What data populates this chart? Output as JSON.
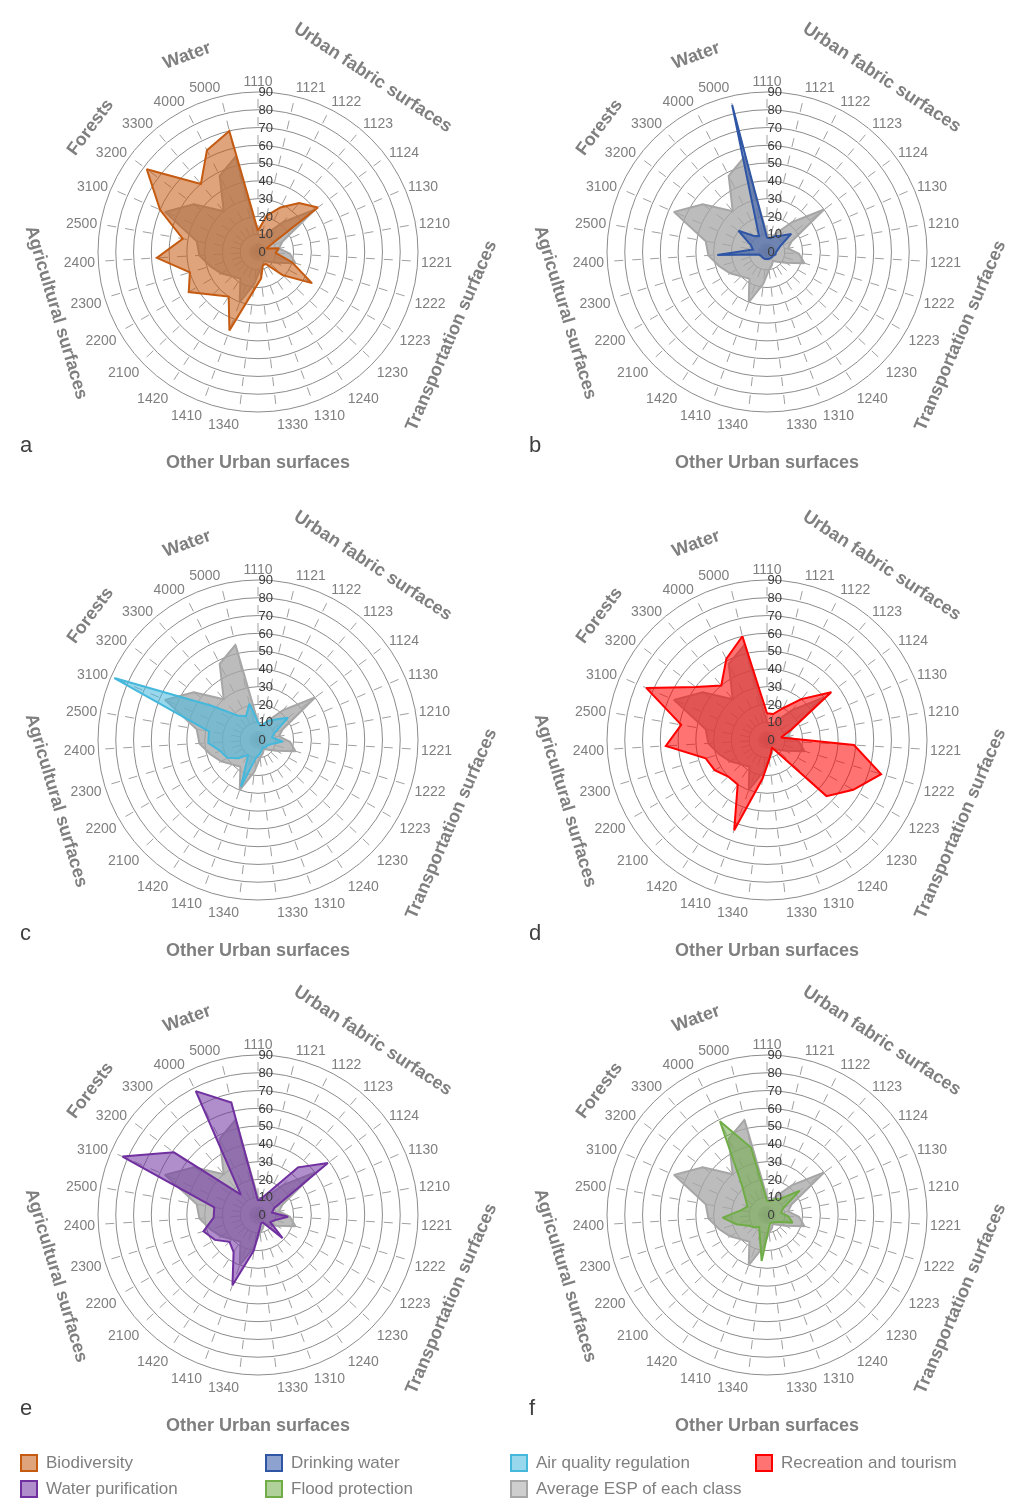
{
  "chart_data": [
    {
      "type": "radar",
      "title": "a",
      "categories": [
        "1110",
        "1121",
        "1122",
        "1123",
        "1124",
        "1130",
        "1210",
        "1221",
        "1222",
        "1223",
        "1230",
        "1240",
        "1310",
        "1330",
        "1340",
        "1410",
        "1420",
        "2100",
        "2200",
        "2300",
        "2400",
        "2500",
        "3100",
        "3200",
        "3300",
        "4000",
        "5000"
      ],
      "annotations": [
        "Urban fabric surfaces",
        "Transportation surfaces",
        "Other Urban surfaces",
        "Agricultural surfaces",
        "Forests",
        "Water"
      ],
      "ylim": [
        0,
        90
      ],
      "yticks": [
        0,
        10,
        20,
        30,
        40,
        50,
        60,
        70,
        80,
        90
      ],
      "grid": true,
      "legend": "bottom",
      "marker": "none",
      "line_style": "solid",
      "series": [
        {
          "name": "Average ESP of each class",
          "color": "#a6a6a6",
          "values": [
            10,
            8,
            12,
            22,
            40,
            15,
            12,
            18,
            22,
            12,
            8,
            6,
            8,
            10,
            18,
            30,
            18,
            20,
            24,
            28,
            33,
            35,
            57,
            45,
            30,
            48,
            55
          ]
        },
        {
          "name": "Biodiversity",
          "color": "#c55a11",
          "values": [
            12,
            21,
            28,
            36,
            42,
            5,
            12,
            10,
            20,
            35,
            19,
            8,
            8,
            15,
            22,
            47,
            30,
            35,
            45,
            40,
            57,
            43,
            60,
            78,
            50,
            64,
            70
          ]
        }
      ]
    },
    {
      "type": "radar",
      "title": "b",
      "categories": [
        "1110",
        "1121",
        "1122",
        "1123",
        "1124",
        "1130",
        "1210",
        "1221",
        "1222",
        "1223",
        "1230",
        "1240",
        "1310",
        "1330",
        "1340",
        "1410",
        "1420",
        "2100",
        "2200",
        "2300",
        "2400",
        "2500",
        "3100",
        "3200",
        "3300",
        "4000",
        "5000"
      ],
      "annotations": [
        "Urban fabric surfaces",
        "Transportation surfaces",
        "Other Urban surfaces",
        "Agricultural surfaces",
        "Forests",
        "Water"
      ],
      "ylim": [
        0,
        90
      ],
      "yticks": [
        0,
        10,
        20,
        30,
        40,
        50,
        60,
        70,
        80,
        90
      ],
      "grid": true,
      "legend": "bottom",
      "marker": "none",
      "line_style": "solid",
      "series": [
        {
          "name": "Average ESP of each class",
          "color": "#a6a6a6",
          "values": [
            10,
            8,
            12,
            22,
            40,
            15,
            12,
            18,
            22,
            12,
            8,
            6,
            8,
            10,
            18,
            30,
            18,
            20,
            24,
            28,
            33,
            35,
            57,
            45,
            30,
            48,
            55
          ]
        },
        {
          "name": "Drinking water",
          "color": "#2f55a5",
          "values": [
            8,
            8,
            10,
            12,
            17,
            8,
            6,
            5,
            5,
            4,
            4,
            4,
            4,
            4,
            4,
            4,
            4,
            4,
            4,
            5,
            28,
            8,
            10,
            20,
            12,
            10,
            85
          ]
        }
      ]
    },
    {
      "type": "radar",
      "title": "c",
      "categories": [
        "1110",
        "1121",
        "1122",
        "1123",
        "1124",
        "1130",
        "1210",
        "1221",
        "1222",
        "1223",
        "1230",
        "1240",
        "1310",
        "1330",
        "1340",
        "1410",
        "1420",
        "2100",
        "2200",
        "2300",
        "2400",
        "2500",
        "3100",
        "3200",
        "3300",
        "4000",
        "5000"
      ],
      "annotations": [
        "Urban fabric surfaces",
        "Transportation surfaces",
        "Other Urban surfaces",
        "Agricultural surfaces",
        "Forests",
        "Water"
      ],
      "ylim": [
        0,
        90
      ],
      "yticks": [
        0,
        10,
        20,
        30,
        40,
        50,
        60,
        70,
        80,
        90
      ],
      "grid": true,
      "legend": "bottom",
      "marker": "none",
      "line_style": "solid",
      "series": [
        {
          "name": "Average ESP of each class",
          "color": "#a6a6a6",
          "values": [
            10,
            8,
            12,
            22,
            40,
            15,
            12,
            18,
            22,
            12,
            8,
            6,
            8,
            10,
            18,
            30,
            18,
            20,
            24,
            28,
            33,
            35,
            57,
            45,
            30,
            48,
            55
          ]
        },
        {
          "name": "Air quality regulation",
          "color": "#45b8dc",
          "values": [
            10,
            8,
            12,
            15,
            21,
            10,
            8,
            14,
            8,
            6,
            6,
            5,
            6,
            8,
            10,
            28,
            10,
            15,
            20,
            22,
            28,
            28,
            88,
            32,
            18,
            15,
            21
          ]
        }
      ]
    },
    {
      "type": "radar",
      "title": "d",
      "categories": [
        "1110",
        "1121",
        "1122",
        "1123",
        "1124",
        "1130",
        "1210",
        "1221",
        "1222",
        "1223",
        "1230",
        "1240",
        "1310",
        "1330",
        "1340",
        "1410",
        "1420",
        "2100",
        "2200",
        "2300",
        "2400",
        "2500",
        "3100",
        "3200",
        "3300",
        "4000",
        "5000"
      ],
      "annotations": [
        "Urban fabric surfaces",
        "Transportation surfaces",
        "Other Urban surfaces",
        "Agricultural surfaces",
        "Forests",
        "Water"
      ],
      "ylim": [
        0,
        90
      ],
      "yticks": [
        0,
        10,
        20,
        30,
        40,
        50,
        60,
        70,
        80,
        90
      ],
      "grid": true,
      "legend": "bottom",
      "marker": "none",
      "line_style": "solid",
      "series": [
        {
          "name": "Average ESP of each class",
          "color": "#a6a6a6",
          "values": [
            10,
            8,
            12,
            22,
            40,
            15,
            12,
            18,
            22,
            12,
            8,
            6,
            8,
            10,
            18,
            30,
            18,
            20,
            24,
            28,
            33,
            35,
            57,
            45,
            30,
            48,
            55
          ]
        },
        {
          "name": "Recreation and tourism",
          "color": "#ff0000",
          "values": [
            15,
            15,
            20,
            30,
            45,
            15,
            8,
            49,
            67,
            56,
            46,
            5,
            7,
            11,
            22,
            54,
            30,
            30,
            34,
            36,
            57,
            49,
            74,
            50,
            40,
            51,
            60
          ]
        }
      ]
    },
    {
      "type": "radar",
      "title": "e",
      "categories": [
        "1110",
        "1121",
        "1122",
        "1123",
        "1124",
        "1130",
        "1210",
        "1221",
        "1222",
        "1223",
        "1230",
        "1240",
        "1310",
        "1330",
        "1340",
        "1410",
        "1420",
        "2100",
        "2200",
        "2300",
        "2400",
        "2500",
        "3100",
        "3200",
        "3300",
        "4000",
        "5000"
      ],
      "annotations": [
        "Urban fabric surfaces",
        "Transportation surfaces",
        "Other Urban surfaces",
        "Agricultural surfaces",
        "Forests",
        "Water"
      ],
      "ylim": [
        0,
        90
      ],
      "yticks": [
        0,
        10,
        20,
        30,
        40,
        50,
        60,
        70,
        80,
        90
      ],
      "grid": true,
      "legend": "bottom",
      "marker": "none",
      "line_style": "solid",
      "series": [
        {
          "name": "Average ESP of each class",
          "color": "#a6a6a6",
          "values": [
            10,
            8,
            12,
            22,
            40,
            15,
            12,
            18,
            22,
            12,
            8,
            6,
            8,
            10,
            18,
            30,
            18,
            20,
            24,
            28,
            33,
            35,
            57,
            45,
            30,
            48,
            55
          ]
        },
        {
          "name": "Water purification",
          "color": "#7030a0",
          "values": [
            8,
            10,
            15,
            35,
            49,
            10,
            8,
            17,
            10,
            8,
            19,
            5,
            5,
            8,
            20,
            42,
            25,
            22,
            28,
            32,
            25,
            25,
            83,
            59,
            15,
            78,
            65
          ]
        }
      ]
    },
    {
      "type": "radar",
      "title": "f",
      "categories": [
        "1110",
        "1121",
        "1122",
        "1123",
        "1124",
        "1130",
        "1210",
        "1221",
        "1222",
        "1223",
        "1230",
        "1240",
        "1310",
        "1330",
        "1340",
        "1410",
        "1420",
        "2100",
        "2200",
        "2300",
        "2400",
        "2500",
        "3100",
        "3200",
        "3300",
        "4000",
        "5000"
      ],
      "annotations": [
        "Urban fabric surfaces",
        "Transportation surfaces",
        "Other Urban surfaces",
        "Agricultural surfaces",
        "Forests",
        "Water"
      ],
      "ylim": [
        0,
        90
      ],
      "yticks": [
        0,
        10,
        20,
        30,
        40,
        50,
        60,
        70,
        80,
        90
      ],
      "grid": true,
      "legend": "bottom",
      "marker": "none",
      "line_style": "solid",
      "series": [
        {
          "name": "Average ESP of each class",
          "color": "#a6a6a6",
          "values": [
            10,
            8,
            12,
            22,
            40,
            15,
            12,
            18,
            22,
            12,
            8,
            6,
            8,
            10,
            18,
            30,
            18,
            20,
            24,
            28,
            33,
            35,
            57,
            45,
            30,
            48,
            55
          ]
        },
        {
          "name": "Flood protection",
          "color": "#70ad47",
          "values": [
            8,
            8,
            10,
            12,
            23,
            10,
            8,
            12,
            15,
            8,
            6,
            5,
            5,
            8,
            26,
            12,
            8,
            10,
            12,
            18,
            25,
            15,
            12,
            15,
            22,
            59,
            39
          ]
        }
      ]
    }
  ]
}
